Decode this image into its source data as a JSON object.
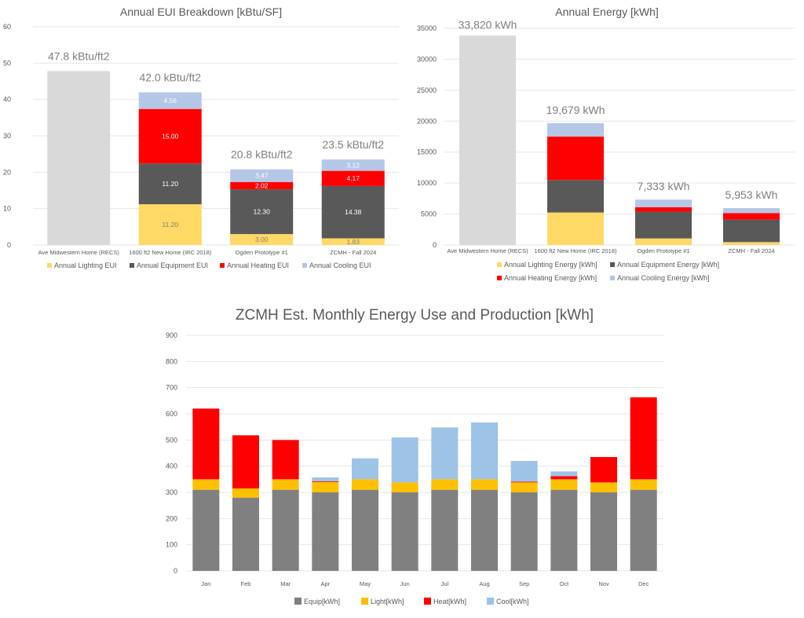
{
  "chart_data": [
    {
      "type": "bar",
      "stacked": true,
      "title": "Annual EUI Breakdown [kBtu/SF]",
      "xlabel": "",
      "ylabel": "",
      "ylim": [
        0,
        60
      ],
      "yticks": [
        0,
        10,
        20,
        30,
        40,
        50,
        60
      ],
      "grid": true,
      "legend_position": "bottom",
      "categories": [
        "Ave Midwestern Home (RECS)",
        "1600 ft2 New Home (IRC 2018)",
        "Ogden Prototype #1",
        "ZCMH - Fall 2024"
      ],
      "totals": [
        47.8,
        42.0,
        20.8,
        23.5
      ],
      "total_labels": [
        "47.8 kBtu/ft2",
        "42.0 kBtu/ft2",
        "20.8 kBtu/ft2",
        "23.5 kBtu/ft2"
      ],
      "baseline": {
        "name": "Total",
        "values": [
          47.8,
          null,
          null,
          null
        ],
        "color": "#d9d9d9"
      },
      "series": [
        {
          "name": "Annual Lighting EUI",
          "values": [
            null,
            11.2,
            3.0,
            1.83
          ],
          "labels": [
            "",
            "11.20",
            "3.00",
            "1.83"
          ],
          "color": "#ffd966",
          "label_color": "#7f7f7f"
        },
        {
          "name": "Annual Equipment EUI",
          "values": [
            null,
            11.2,
            12.3,
            14.38
          ],
          "labels": [
            "",
            "11.20",
            "12.30",
            "14.38"
          ],
          "color": "#595959",
          "label_color": "#ffffff"
        },
        {
          "name": "Annual Heating  EUI",
          "values": [
            null,
            15.0,
            2.02,
            4.17
          ],
          "labels": [
            "",
            "15.00",
            "2.02",
            "4.17"
          ],
          "color": "#ff0000",
          "label_color": "#ffffff"
        },
        {
          "name": "Annual Cooling  EUI",
          "values": [
            null,
            4.56,
            3.47,
            3.12
          ],
          "labels": [
            "",
            "4.56",
            "3.47",
            "3.12"
          ],
          "color": "#b4c7e7",
          "label_color": "#ffffff"
        }
      ]
    },
    {
      "type": "bar",
      "stacked": true,
      "title": "Annual Energy [kWh]",
      "xlabel": "",
      "ylabel": "",
      "ylim": [
        0,
        35000
      ],
      "yticks": [
        0,
        5000,
        10000,
        15000,
        20000,
        25000,
        30000,
        35000
      ],
      "grid": true,
      "legend_position": "bottom",
      "categories": [
        "Ave Midwestern Home (RECS)",
        "1600 ft2 New Home (IRC 2018)",
        "Ogden Prototype #1",
        "ZCMH - Fall 2024"
      ],
      "totals": [
        33820,
        19679,
        7333,
        5953
      ],
      "total_labels": [
        "33,820 kWh",
        "19,679 kWh",
        "7,333 kWh",
        "5,953 kWh"
      ],
      "baseline": {
        "name": "Total",
        "values": [
          33820,
          null,
          null,
          null
        ],
        "color": "#d9d9d9"
      },
      "series": [
        {
          "name": "Annual Lighting Energy [kWh]",
          "values": [
            null,
            5248,
            1058,
            464
          ],
          "color": "#ffd966"
        },
        {
          "name": "Annual Equipment Energy [kWh]",
          "values": [
            null,
            5248,
            4336,
            3643
          ],
          "color": "#595959"
        },
        {
          "name": "Annual Heating Energy [kWh]",
          "values": [
            null,
            7028,
            712,
            1056
          ],
          "color": "#ff0000"
        },
        {
          "name": "Annual Cooling Energy [kWh]",
          "values": [
            null,
            2155,
            1227,
            790
          ],
          "color": "#b4c7e7"
        }
      ]
    },
    {
      "type": "bar",
      "stacked": true,
      "title": "ZCMH Est. Monthly Energy Use and Production [kWh]",
      "xlabel": "",
      "ylabel": "",
      "ylim": [
        0,
        900
      ],
      "yticks": [
        0,
        100,
        200,
        300,
        400,
        500,
        600,
        700,
        800,
        900
      ],
      "grid": true,
      "legend_position": "bottom",
      "categories": [
        "Jan",
        "Feb",
        "Mar",
        "Apr",
        "May",
        "Jun",
        "Jul",
        "Aug",
        "Sep",
        "Oct",
        "Nov",
        "Dec"
      ],
      "series": [
        {
          "name": "Equip[kWh]",
          "values": [
            310,
            280,
            310,
            300,
            310,
            300,
            310,
            310,
            300,
            310,
            300,
            310
          ],
          "color": "#808080"
        },
        {
          "name": "Light[kWh]",
          "values": [
            40,
            35,
            40,
            40,
            40,
            38,
            40,
            40,
            38,
            40,
            38,
            40
          ],
          "color": "#ffc000"
        },
        {
          "name": "Heat[kWh]",
          "values": [
            270,
            203,
            150,
            2,
            0,
            0,
            0,
            0,
            3,
            12,
            97,
            313
          ],
          "color": "#ff0000"
        },
        {
          "name": "Cool[kWh]",
          "values": [
            0,
            0,
            0,
            15,
            80,
            172,
            198,
            217,
            79,
            18,
            0,
            0
          ],
          "color": "#9dc3e6"
        }
      ]
    }
  ]
}
